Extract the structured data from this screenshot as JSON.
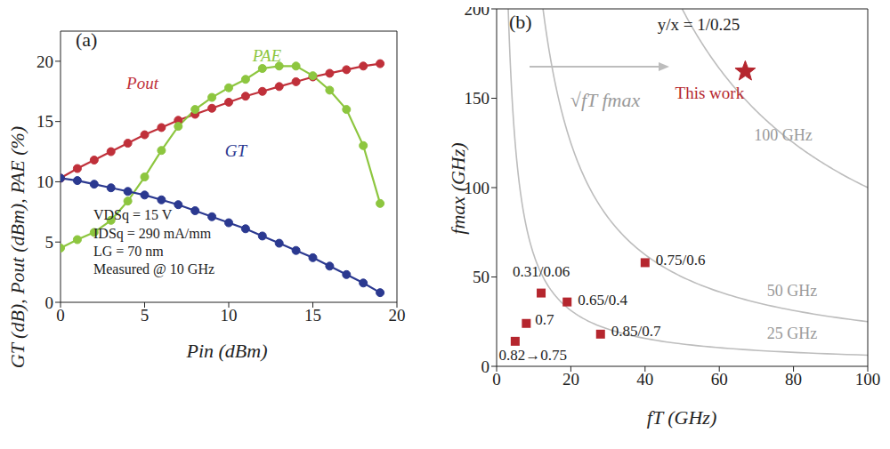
{
  "chart_data": [
    {
      "type": "line",
      "title": "(a)",
      "xlabel": "Pin (dBm)",
      "ylabel": "GT (dB), Pout (dBm), PAE (%)",
      "x": [
        0,
        1,
        2,
        3,
        4,
        5,
        6,
        7,
        8,
        9,
        10,
        11,
        12,
        13,
        14,
        15,
        16,
        17,
        18,
        19
      ],
      "series": [
        {
          "name": "Pout",
          "color": "#c0303a",
          "values": [
            10.3,
            11.1,
            11.8,
            12.5,
            13.2,
            13.9,
            14.5,
            15.1,
            15.6,
            16.1,
            16.6,
            17.1,
            17.5,
            17.9,
            18.3,
            18.7,
            19.0,
            19.3,
            19.6,
            19.8
          ]
        },
        {
          "name": "PAE",
          "color": "#8dc63f",
          "values": [
            4.5,
            5.2,
            5.8,
            6.8,
            8.4,
            10.4,
            12.6,
            14.6,
            16.0,
            17.0,
            17.8,
            18.5,
            19.4,
            19.6,
            19.6,
            18.8,
            17.6,
            16.0,
            13.0,
            8.2
          ]
        },
        {
          "name": "GT",
          "color": "#2b3990",
          "values": [
            10.3,
            10.1,
            9.8,
            9.5,
            9.2,
            8.9,
            8.5,
            8.1,
            7.6,
            7.1,
            6.6,
            6.1,
            5.5,
            4.9,
            4.3,
            3.7,
            3.0,
            2.3,
            1.6,
            0.8
          ]
        }
      ],
      "marker": "circle",
      "xlim": [
        0,
        20
      ],
      "xticks": [
        0,
        5,
        10,
        15,
        20
      ],
      "ylim": [
        0,
        22.5
      ],
      "yticks": [
        0,
        5,
        10,
        15,
        20
      ],
      "annotations": [
        "VDSq = 15 V",
        "IDSq = 290 mA/mm",
        "LG = 70 nm",
        "Measured @ 10 GHz"
      ]
    },
    {
      "type": "scatter",
      "title": "(b)",
      "xlabel": "fT (GHz)",
      "ylabel": "fmax (GHz)",
      "xlim": [
        0,
        100
      ],
      "xticks": [
        0,
        20,
        40,
        60,
        80,
        100
      ],
      "ylim": [
        0,
        200
      ],
      "yticks": [
        0,
        50,
        100,
        150,
        200
      ],
      "series": [
        {
          "name": "This work",
          "color": "#b5262e",
          "marker": "star",
          "x": [
            67
          ],
          "values": [
            165
          ]
        },
        {
          "color": "#b5262e",
          "marker": "square",
          "x": [
            5,
            8,
            12,
            19,
            28,
            40
          ],
          "values": [
            14,
            24,
            41,
            36,
            18,
            58
          ],
          "labels": [
            "0.82→0.75",
            "0.7",
            "0.31/0.06",
            "0.65/0.4",
            "0.85/0.7",
            "0.75/0.6"
          ]
        }
      ],
      "contours": {
        "name": "√fT fmax",
        "levels": [
          100,
          50,
          25
        ],
        "labels": [
          "100 GHz",
          "50 GHz",
          "25 GHz"
        ]
      },
      "annotations": [
        "y/x = 1/0.25"
      ]
    }
  ]
}
